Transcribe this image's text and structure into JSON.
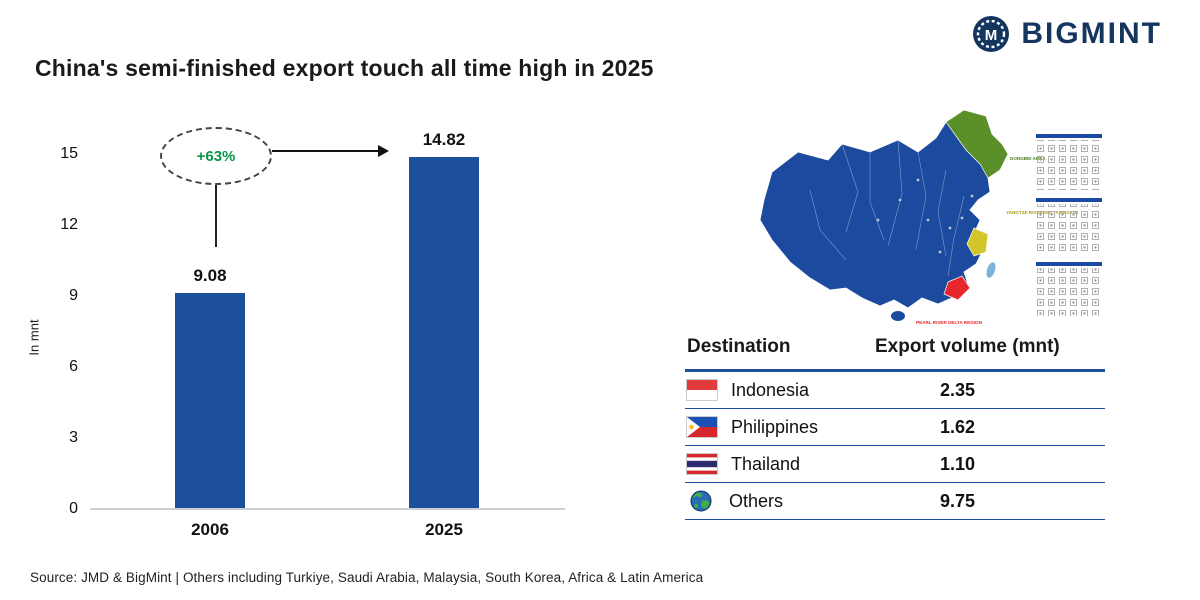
{
  "colors": {
    "brand_navy": "#14355f",
    "bar_blue": "#1d4f9f",
    "accent_green": "#0a9548",
    "table_line_blue": "#1d4f9f",
    "map_blue": "#1b4a9e",
    "map_green": "#5a8f29",
    "map_yellow": "#d4c52a",
    "map_red": "#e8262d"
  },
  "header": {
    "brand": "BIGMINT",
    "title": "China's semi-finished export touch all time high in 2025"
  },
  "chart_data": {
    "type": "bar",
    "categories": [
      "2006",
      "2025"
    ],
    "values": [
      9.08,
      14.82
    ],
    "value_labels": [
      "9.08",
      "14.82"
    ],
    "title": "China's semi-finished export touch all time high in 2025",
    "xlabel": "",
    "ylabel": "In mnt",
    "yticks": [
      15,
      12,
      9,
      6,
      3,
      0
    ],
    "ylim": [
      0,
      15
    ],
    "annotation": "+63%",
    "bar_color": "#1d4f9f",
    "grid": false,
    "legend": false
  },
  "map": {
    "labels": {
      "dongbei": "DONGBEI AREA",
      "yangtze": "YANGTZE RIVER DELTA REGION",
      "pearl": "PEARL RIVER DELTA REGION"
    }
  },
  "table": {
    "headers": [
      "Destination",
      "Export volume (mnt)"
    ],
    "rows": [
      {
        "icon": "indonesia-flag",
        "destination": "Indonesia",
        "value": "2.35"
      },
      {
        "icon": "philippines-flag",
        "destination": "Philippines",
        "value": "1.62"
      },
      {
        "icon": "thailand-flag",
        "destination": "Thailand",
        "value": "1.10"
      },
      {
        "icon": "globe-icon",
        "destination": "Others",
        "value": "9.75"
      }
    ]
  },
  "footer": {
    "source": "Source: JMD & BigMint | Others including Turkiye, Saudi Arabia, Malaysia, South Korea, Africa & Latin America"
  }
}
